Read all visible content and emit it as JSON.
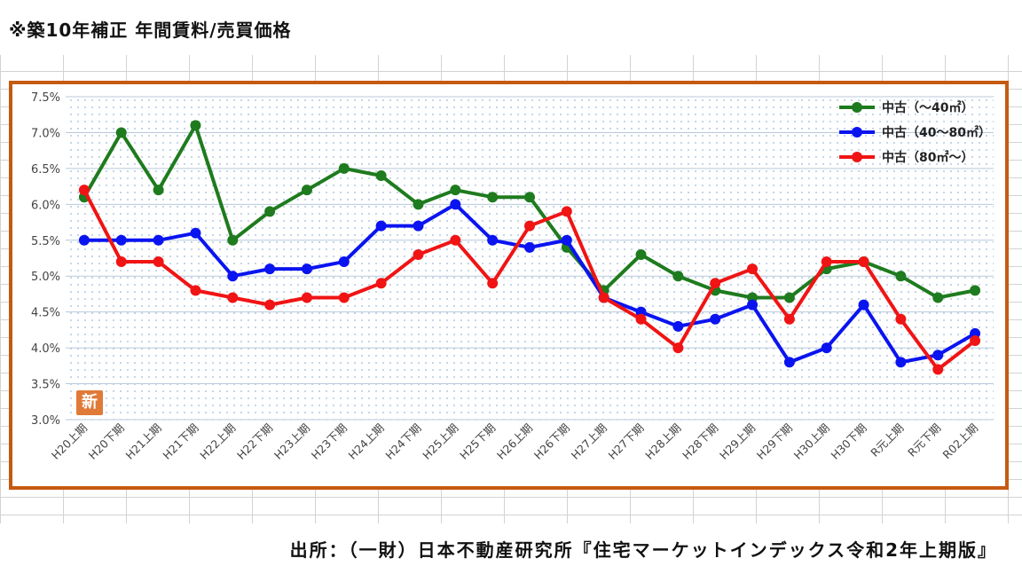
{
  "title": "※築10年補正 年間賃料/売買価格",
  "source": "出所：（一財）日本不動産研究所『住宅マーケットインデックス令和2年上期版』",
  "badge": "新",
  "chart_data": {
    "type": "line",
    "categories": [
      "H20上期",
      "H20下期",
      "H21上期",
      "H21下期",
      "H22上期",
      "H22下期",
      "H23上期",
      "H23下期",
      "H24上期",
      "H24下期",
      "H25上期",
      "H25下期",
      "H26上期",
      "H26下期",
      "H27上期",
      "H27下期",
      "H28上期",
      "H28下期",
      "H29上期",
      "H29下期",
      "H30上期",
      "H30下期",
      "R元上期",
      "R元下期",
      "R02上期"
    ],
    "ylim": [
      3.0,
      7.5
    ],
    "yticks": [
      "3.0%",
      "3.5%",
      "4.0%",
      "4.5%",
      "5.0%",
      "5.5%",
      "6.0%",
      "6.5%",
      "7.0%",
      "7.5%"
    ],
    "grid": true,
    "legend_position": "top-right",
    "series": [
      {
        "name": "中古（～40㎡）",
        "color": "#1e7b1e",
        "values": [
          6.1,
          7.0,
          6.2,
          7.1,
          5.5,
          5.9,
          6.2,
          6.5,
          6.4,
          6.0,
          6.2,
          6.1,
          6.1,
          5.4,
          4.8,
          5.3,
          5.0,
          4.8,
          4.7,
          4.7,
          5.1,
          5.2,
          5.0,
          4.7,
          4.8
        ]
      },
      {
        "name": "中古（40～80㎡）",
        "color": "#0a14f0",
        "values": [
          5.5,
          5.5,
          5.5,
          5.6,
          5.0,
          5.1,
          5.1,
          5.2,
          5.7,
          5.7,
          6.0,
          5.5,
          5.4,
          5.5,
          4.7,
          4.5,
          4.3,
          4.4,
          4.6,
          3.8,
          4.0,
          4.6,
          3.8,
          3.9,
          4.2
        ]
      },
      {
        "name": "中古（80㎡～）",
        "color": "#f01414",
        "values": [
          6.2,
          5.2,
          5.2,
          4.8,
          4.7,
          4.6,
          4.7,
          4.7,
          4.9,
          5.3,
          5.5,
          4.9,
          5.7,
          5.9,
          4.7,
          4.4,
          4.0,
          4.9,
          5.1,
          4.4,
          5.2,
          5.2,
          4.4,
          3.7,
          4.1
        ]
      }
    ]
  }
}
